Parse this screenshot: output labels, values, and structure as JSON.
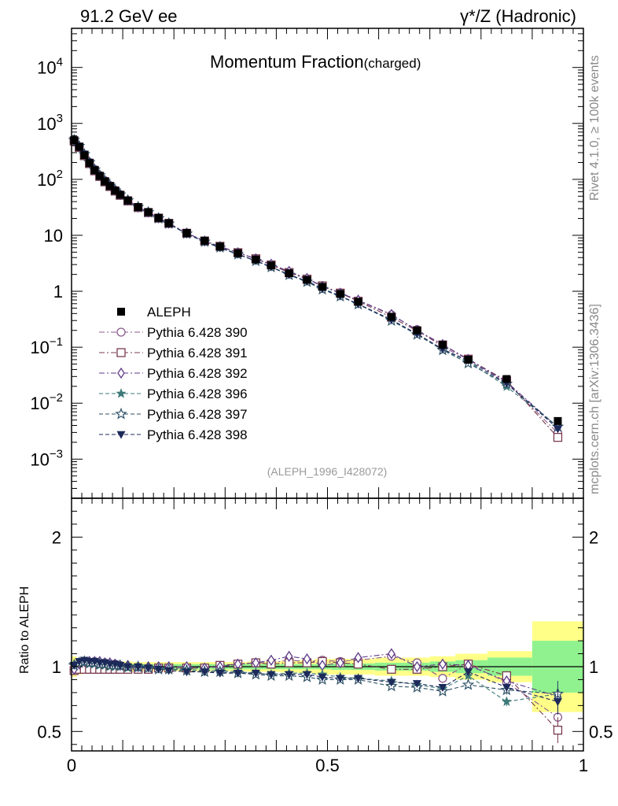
{
  "header": {
    "left": "91.2 GeV ee",
    "right": "γ*/Z (Hadronic)"
  },
  "side_label_top": "Rivet 4.1.0, ≥ 100k events",
  "side_label_bottom": "mcplots.cern.ch [arXiv:1306.3436]",
  "chart_data": {
    "type": "line",
    "title": "Momentum Fraction",
    "title_suffix": "(charged)",
    "analysis_id": "(ALEPH_1996_I428072)",
    "xlabel": "",
    "ylabel": "",
    "ratio_ylabel": "Ratio to ALEPH",
    "xlim": [
      0,
      1
    ],
    "ylim_log": [
      0.0002,
      50000
    ],
    "ratio_ylim": [
      0.35,
      2.3
    ],
    "x_ticks": [
      {
        "value": 0,
        "label": "0"
      },
      {
        "value": 0.5,
        "label": "0.5"
      },
      {
        "value": 1,
        "label": "1"
      }
    ],
    "y_ticks": [
      {
        "value": 0.001,
        "base": "10",
        "exp": "−3"
      },
      {
        "value": 0.01,
        "base": "10",
        "exp": "−2"
      },
      {
        "value": 0.1,
        "base": "10",
        "exp": "−1"
      },
      {
        "value": 1,
        "base": "1",
        "exp": ""
      },
      {
        "value": 10,
        "base": "10",
        "exp": ""
      },
      {
        "value": 100,
        "base": "10",
        "exp": "2"
      },
      {
        "value": 1000,
        "base": "10",
        "exp": "3"
      },
      {
        "value": 10000,
        "base": "10",
        "exp": "4"
      }
    ],
    "ratio_ticks": [
      {
        "value": 0.5,
        "label": "0.5"
      },
      {
        "value": 1,
        "label": "1"
      },
      {
        "value": 2,
        "label": "2"
      }
    ],
    "x": [
      0.005,
      0.015,
      0.025,
      0.035,
      0.045,
      0.055,
      0.065,
      0.075,
      0.085,
      0.095,
      0.11,
      0.13,
      0.15,
      0.17,
      0.19,
      0.225,
      0.26,
      0.29,
      0.325,
      0.36,
      0.39,
      0.425,
      0.46,
      0.49,
      0.525,
      0.56,
      0.625,
      0.675,
      0.725,
      0.775,
      0.85,
      0.95
    ],
    "data": {
      "name": "ALEPH",
      "values": [
        500,
        380,
        270,
        195,
        145,
        115,
        92,
        76,
        63,
        53,
        42,
        32,
        26,
        20.5,
        16.5,
        11,
        8,
        6.3,
        4.8,
        3.7,
        2.9,
        2.1,
        1.6,
        1.2,
        0.9,
        0.65,
        0.35,
        0.2,
        0.11,
        0.06,
        0.027,
        0.0048
      ],
      "ratio_err_inner": [
        0.04,
        0.03,
        0.02,
        0.02,
        0.02,
        0.02,
        0.02,
        0.02,
        0.02,
        0.02,
        0.02,
        0.02,
        0.02,
        0.02,
        0.02,
        0.02,
        0.02,
        0.02,
        0.02,
        0.02,
        0.02,
        0.02,
        0.02,
        0.02,
        0.025,
        0.025,
        0.03,
        0.03,
        0.04,
        0.05,
        0.07,
        0.2
      ],
      "ratio_err_outer": [
        0.08,
        0.06,
        0.05,
        0.05,
        0.04,
        0.04,
        0.04,
        0.04,
        0.04,
        0.04,
        0.04,
        0.035,
        0.035,
        0.035,
        0.035,
        0.035,
        0.035,
        0.035,
        0.035,
        0.04,
        0.04,
        0.045,
        0.05,
        0.06,
        0.06,
        0.06,
        0.07,
        0.07,
        0.08,
        0.1,
        0.12,
        0.35
      ]
    },
    "series": [
      {
        "name": "Pythia 6.428 390",
        "color": "#8b5a8b",
        "marker": "circle-open",
        "dash": "7,3,2,3",
        "ratio": [
          0.97,
          0.99,
          1.03,
          1.03,
          1.04,
          1.03,
          1.03,
          1.02,
          1.02,
          1.01,
          1.0,
          0.99,
          0.99,
          0.99,
          0.99,
          0.99,
          0.99,
          1.0,
          1.02,
          1.03,
          1.03,
          1.05,
          1.04,
          1.05,
          1.04,
          1.05,
          1.08,
          1.03,
          0.91,
          1.02,
          0.88,
          0.61
        ]
      },
      {
        "name": "Pythia 6.428 391",
        "color": "#7a3b4f",
        "marker": "square-open",
        "dash": "7,3,2,3",
        "ratio": [
          0.97,
          0.98,
          0.98,
          0.98,
          0.98,
          0.98,
          0.98,
          0.98,
          0.98,
          0.98,
          0.98,
          0.98,
          0.98,
          0.99,
          0.99,
          0.99,
          0.99,
          1.01,
          1.02,
          1.03,
          1.02,
          1.03,
          1.03,
          1.04,
          1.03,
          1.02,
          0.98,
          0.98,
          1.0,
          1.02,
          0.93,
          0.51
        ]
      },
      {
        "name": "Pythia 6.428 392",
        "color": "#5e3a87",
        "marker": "diamond-open",
        "dash": "7,3,2,3",
        "ratio": [
          0.98,
          1.02,
          1.04,
          1.04,
          1.04,
          1.04,
          1.03,
          1.03,
          1.02,
          1.01,
          1.01,
          1.0,
          1.0,
          1.0,
          1.0,
          1.0,
          0.99,
          1.0,
          1.02,
          1.03,
          1.05,
          1.08,
          1.06,
          1.01,
          1.03,
          1.07,
          1.1,
          1.0,
          1.02,
          1.01,
          0.89,
          0.77
        ]
      },
      {
        "name": "Pythia 6.428 396",
        "color": "#3f7a7a",
        "marker": "star-filled",
        "dash": "5,3",
        "ratio": [
          1.02,
          1.03,
          1.03,
          1.02,
          1.02,
          1.01,
          1.01,
          1.0,
          1.0,
          1.0,
          0.99,
          0.99,
          0.99,
          0.98,
          0.98,
          0.98,
          0.97,
          0.97,
          0.96,
          0.95,
          0.94,
          0.95,
          0.95,
          0.94,
          0.92,
          0.91,
          0.89,
          0.86,
          0.83,
          0.93,
          0.73,
          0.79
        ]
      },
      {
        "name": "Pythia 6.428 397",
        "color": "#2e5066",
        "marker": "star-open",
        "dash": "5,3",
        "ratio": [
          1.01,
          1.03,
          1.04,
          1.03,
          1.03,
          1.02,
          1.02,
          1.01,
          1.01,
          1.01,
          1.0,
          1.0,
          0.99,
          0.98,
          0.98,
          0.97,
          0.96,
          0.96,
          0.95,
          0.94,
          0.93,
          0.93,
          0.92,
          0.9,
          0.9,
          0.9,
          0.85,
          0.84,
          0.81,
          0.86,
          0.82,
          0.79
        ]
      },
      {
        "name": "Pythia 6.428 398",
        "color": "#1c2a5a",
        "marker": "triangle-down-filled",
        "dash": "5,3",
        "ratio": [
          1.01,
          1.04,
          1.05,
          1.04,
          1.04,
          1.03,
          1.03,
          1.02,
          1.02,
          1.01,
          1.0,
          1.0,
          0.99,
          0.98,
          0.97,
          0.96,
          0.96,
          0.95,
          0.95,
          0.95,
          0.94,
          0.94,
          0.94,
          0.92,
          0.91,
          0.91,
          0.88,
          0.87,
          0.84,
          0.96,
          0.84,
          0.73
        ]
      }
    ]
  }
}
